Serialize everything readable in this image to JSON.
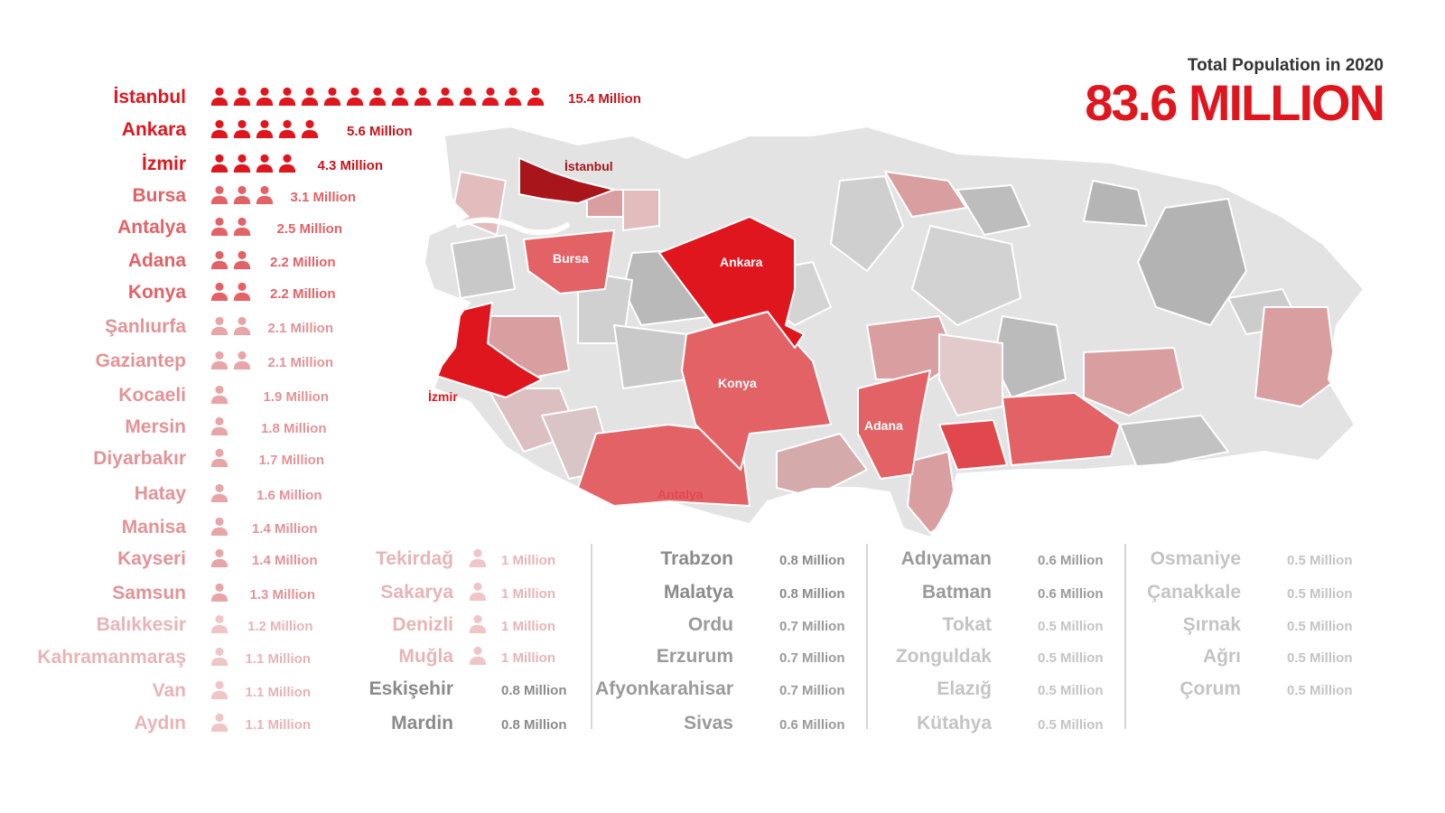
{
  "header": {
    "subtitle": "Total Population in 2020",
    "total": "83.6 MILLION"
  },
  "colors": {
    "accent": "#e0161e",
    "dark_red": "#a8151a",
    "mid_red": "#e36266",
    "light_red": "#d99ea0",
    "pale_red": "#ecc9ca",
    "gray_dark": "#9e9e9e",
    "gray_light": "#c8c8c8"
  },
  "chart_data": {
    "type": "bar",
    "unit_label": "Million",
    "categories": [
      "İstanbul",
      "Ankara",
      "İzmir",
      "Bursa",
      "Antalya",
      "Adana",
      "Konya",
      "Şanlıurfa",
      "Gaziantep",
      "Kocaeli",
      "Mersin",
      "Diyarbakır",
      "Hatay",
      "Manisa",
      "Kayseri",
      "Samsun",
      "Balıkkesir",
      "Kahramanmaraş",
      "Van",
      "Aydın",
      "Tekirdağ",
      "Sakarya",
      "Denizli",
      "Muğla",
      "Eskişehir",
      "Mardin",
      "Trabzon",
      "Malatya",
      "Ordu",
      "Erzurum",
      "Afyonkarahisar",
      "Sivas",
      "Adıyaman",
      "Batman",
      "Tokat",
      "Zonguldak",
      "Elazığ",
      "Kütahya",
      "Osmaniye",
      "Çanakkale",
      "Şırnak",
      "Ağrı",
      "Çorum"
    ],
    "values": [
      15.4,
      5.6,
      4.3,
      3.1,
      2.5,
      2.2,
      2.2,
      2.1,
      2.1,
      1.9,
      1.8,
      1.7,
      1.6,
      1.4,
      1.4,
      1.3,
      1.2,
      1.1,
      1.1,
      1.1,
      1,
      1,
      1,
      1,
      0.8,
      0.8,
      0.8,
      0.8,
      0.7,
      0.7,
      0.7,
      0.6,
      0.6,
      0.6,
      0.5,
      0.5,
      0.5,
      0.5,
      0.5,
      0.5,
      0.5,
      0.5,
      0.5
    ],
    "value_labels": [
      "15.4 Million",
      "5.6 Million",
      "4.3 Million",
      "3.1 Million",
      "2.5 Million",
      "2.2 Million",
      "2.2 Million",
      "2.1 Million",
      "2.1 Million",
      "1.9 Million",
      "1.8 Million",
      "1.7 Million",
      "1.6 Million",
      "1.4 Million",
      "1.4 Million",
      "1.3 Million",
      "1.2 Million",
      "1.1 Million",
      "1.1 Million",
      "1.1 Million",
      "1 Million",
      "1 Million",
      "1 Million",
      "1 Million",
      "0.8 Million",
      "0.8 Million",
      "0.8 Million",
      "0.8 Million",
      "0.7 Million",
      "0.7 Million",
      "0.7 Million",
      "0.6 Million",
      "0.6 Million",
      "0.6 Million",
      "0.5 Million",
      "0.5 Million",
      "0.5 Million",
      "0.5 Million",
      "0.5 Million",
      "0.5 Million",
      "0.5 Million",
      "0.5 Million",
      "0.5 Million"
    ],
    "icon": "person-icon",
    "icon_value": 1
  },
  "map": {
    "labels": [
      "İstanbul",
      "Bursa",
      "Ankara",
      "İzmir",
      "Konya",
      "Adana",
      "Antalya"
    ]
  }
}
